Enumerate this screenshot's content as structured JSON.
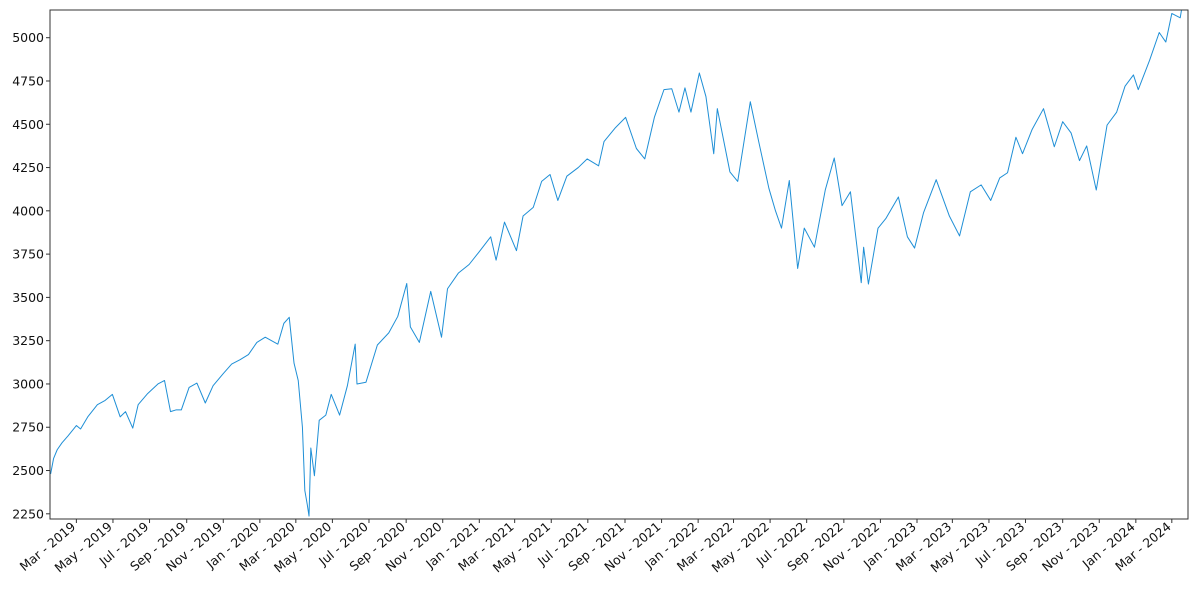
{
  "chart_data": {
    "type": "line",
    "title": "",
    "xlabel": "",
    "ylabel": "",
    "grid": false,
    "legend": "none",
    "ylim": [
      2220,
      5160
    ],
    "xlim": [
      "2019-01-16",
      "2024-03-28"
    ],
    "y_ticks": [
      2250,
      2500,
      2750,
      3000,
      3250,
      3500,
      3750,
      4000,
      4250,
      4500,
      4750,
      5000
    ],
    "x_ticks": [
      {
        "date": "2019-03-01",
        "label": "Mar - 2019"
      },
      {
        "date": "2019-05-01",
        "label": "May - 2019"
      },
      {
        "date": "2019-07-01",
        "label": "Jul - 2019"
      },
      {
        "date": "2019-09-01",
        "label": "Sep - 2019"
      },
      {
        "date": "2019-11-01",
        "label": "Nov - 2019"
      },
      {
        "date": "2020-01-01",
        "label": "Jan - 2020"
      },
      {
        "date": "2020-03-01",
        "label": "Mar - 2020"
      },
      {
        "date": "2020-05-01",
        "label": "May - 2020"
      },
      {
        "date": "2020-07-01",
        "label": "Jul - 2020"
      },
      {
        "date": "2020-09-01",
        "label": "Sep - 2020"
      },
      {
        "date": "2020-11-01",
        "label": "Nov - 2020"
      },
      {
        "date": "2021-01-01",
        "label": "Jan - 2021"
      },
      {
        "date": "2021-03-01",
        "label": "Mar - 2021"
      },
      {
        "date": "2021-05-01",
        "label": "May - 2021"
      },
      {
        "date": "2021-07-01",
        "label": "Jul - 2021"
      },
      {
        "date": "2021-09-01",
        "label": "Sep - 2021"
      },
      {
        "date": "2021-11-01",
        "label": "Nov - 2021"
      },
      {
        "date": "2022-01-01",
        "label": "Jan - 2022"
      },
      {
        "date": "2022-03-01",
        "label": "Mar - 2022"
      },
      {
        "date": "2022-05-01",
        "label": "May - 2022"
      },
      {
        "date": "2022-07-01",
        "label": "Jul - 2022"
      },
      {
        "date": "2022-09-01",
        "label": "Sep - 2022"
      },
      {
        "date": "2022-11-01",
        "label": "Nov - 2022"
      },
      {
        "date": "2023-01-01",
        "label": "Jan - 2023"
      },
      {
        "date": "2023-03-01",
        "label": "Mar - 2023"
      },
      {
        "date": "2023-05-01",
        "label": "May - 2023"
      },
      {
        "date": "2023-07-01",
        "label": "Jul - 2023"
      },
      {
        "date": "2023-09-01",
        "label": "Sep - 2023"
      },
      {
        "date": "2023-11-01",
        "label": "Nov - 2023"
      },
      {
        "date": "2024-01-01",
        "label": "Jan - 2024"
      },
      {
        "date": "2024-03-01",
        "label": "Mar - 2024"
      }
    ],
    "colors": {
      "line": "#1f8fd6",
      "axis": "#333333",
      "background": "#ffffff"
    },
    "series": [
      {
        "points": [
          [
            "2019-01-17",
            2480
          ],
          [
            "2019-01-22",
            2570
          ],
          [
            "2019-01-28",
            2620
          ],
          [
            "2019-02-05",
            2660
          ],
          [
            "2019-02-15",
            2700
          ],
          [
            "2019-03-01",
            2760
          ],
          [
            "2019-03-08",
            2740
          ],
          [
            "2019-03-20",
            2810
          ],
          [
            "2019-04-05",
            2880
          ],
          [
            "2019-04-18",
            2905
          ],
          [
            "2019-04-30",
            2940
          ],
          [
            "2019-05-13",
            2810
          ],
          [
            "2019-05-22",
            2840
          ],
          [
            "2019-06-03",
            2745
          ],
          [
            "2019-06-12",
            2880
          ],
          [
            "2019-06-28",
            2945
          ],
          [
            "2019-07-15",
            3000
          ],
          [
            "2019-07-26",
            3020
          ],
          [
            "2019-08-05",
            2840
          ],
          [
            "2019-08-14",
            2850
          ],
          [
            "2019-08-23",
            2850
          ],
          [
            "2019-09-05",
            2980
          ],
          [
            "2019-09-18",
            3005
          ],
          [
            "2019-10-02",
            2890
          ],
          [
            "2019-10-15",
            2990
          ],
          [
            "2019-11-01",
            3060
          ],
          [
            "2019-11-15",
            3115
          ],
          [
            "2019-11-29",
            3140
          ],
          [
            "2019-12-13",
            3170
          ],
          [
            "2019-12-27",
            3240
          ],
          [
            "2020-01-10",
            3270
          ],
          [
            "2020-01-31",
            3230
          ],
          [
            "2020-02-10",
            3350
          ],
          [
            "2020-02-19",
            3385
          ],
          [
            "2020-02-27",
            3120
          ],
          [
            "2020-03-05",
            3020
          ],
          [
            "2020-03-12",
            2750
          ],
          [
            "2020-03-16",
            2385
          ],
          [
            "2020-03-20",
            2305
          ],
          [
            "2020-03-23",
            2237
          ],
          [
            "2020-03-26",
            2630
          ],
          [
            "2020-04-01",
            2470
          ],
          [
            "2020-04-09",
            2790
          ],
          [
            "2020-04-20",
            2820
          ],
          [
            "2020-04-29",
            2940
          ],
          [
            "2020-05-13",
            2820
          ],
          [
            "2020-05-26",
            2990
          ],
          [
            "2020-06-08",
            3230
          ],
          [
            "2020-06-11",
            3000
          ],
          [
            "2020-06-26",
            3010
          ],
          [
            "2020-07-15",
            3225
          ],
          [
            "2020-08-03",
            3295
          ],
          [
            "2020-08-18",
            3390
          ],
          [
            "2020-09-02",
            3580
          ],
          [
            "2020-09-08",
            3330
          ],
          [
            "2020-09-23",
            3240
          ],
          [
            "2020-10-12",
            3535
          ],
          [
            "2020-10-30",
            3270
          ],
          [
            "2020-11-09",
            3550
          ],
          [
            "2020-11-27",
            3640
          ],
          [
            "2020-12-15",
            3690
          ],
          [
            "2020-12-31",
            3760
          ],
          [
            "2021-01-20",
            3850
          ],
          [
            "2021-01-29",
            3715
          ],
          [
            "2021-02-12",
            3935
          ],
          [
            "2021-03-04",
            3770
          ],
          [
            "2021-03-15",
            3970
          ],
          [
            "2021-04-01",
            4020
          ],
          [
            "2021-04-15",
            4170
          ],
          [
            "2021-04-29",
            4210
          ],
          [
            "2021-05-12",
            4060
          ],
          [
            "2021-05-27",
            4200
          ],
          [
            "2021-06-15",
            4250
          ],
          [
            "2021-06-30",
            4300
          ],
          [
            "2021-07-19",
            4260
          ],
          [
            "2021-07-28",
            4400
          ],
          [
            "2021-08-16",
            4480
          ],
          [
            "2021-09-02",
            4540
          ],
          [
            "2021-09-20",
            4360
          ],
          [
            "2021-10-04",
            4300
          ],
          [
            "2021-10-20",
            4540
          ],
          [
            "2021-11-05",
            4700
          ],
          [
            "2021-11-18",
            4705
          ],
          [
            "2021-11-30",
            4570
          ],
          [
            "2021-12-10",
            4710
          ],
          [
            "2021-12-20",
            4570
          ],
          [
            "2022-01-03",
            4796
          ],
          [
            "2022-01-14",
            4660
          ],
          [
            "2022-01-27",
            4330
          ],
          [
            "2022-02-02",
            4590
          ],
          [
            "2022-02-23",
            4225
          ],
          [
            "2022-03-08",
            4170
          ],
          [
            "2022-03-29",
            4630
          ],
          [
            "2022-04-12",
            4400
          ],
          [
            "2022-04-29",
            4130
          ],
          [
            "2022-05-10",
            4000
          ],
          [
            "2022-05-20",
            3900
          ],
          [
            "2022-06-02",
            4175
          ],
          [
            "2022-06-16",
            3667
          ],
          [
            "2022-06-27",
            3900
          ],
          [
            "2022-07-14",
            3790
          ],
          [
            "2022-08-01",
            4120
          ],
          [
            "2022-08-16",
            4305
          ],
          [
            "2022-08-29",
            4030
          ],
          [
            "2022-09-12",
            4110
          ],
          [
            "2022-09-30",
            3585
          ],
          [
            "2022-10-04",
            3790
          ],
          [
            "2022-10-12",
            3577
          ],
          [
            "2022-10-28",
            3900
          ],
          [
            "2022-11-10",
            3955
          ],
          [
            "2022-12-01",
            4080
          ],
          [
            "2022-12-16",
            3850
          ],
          [
            "2022-12-28",
            3785
          ],
          [
            "2023-01-12",
            3990
          ],
          [
            "2023-02-02",
            4180
          ],
          [
            "2023-02-24",
            3970
          ],
          [
            "2023-03-13",
            3855
          ],
          [
            "2023-03-31",
            4110
          ],
          [
            "2023-04-18",
            4150
          ],
          [
            "2023-05-04",
            4060
          ],
          [
            "2023-05-19",
            4190
          ],
          [
            "2023-06-01",
            4220
          ],
          [
            "2023-06-15",
            4425
          ],
          [
            "2023-06-26",
            4330
          ],
          [
            "2023-07-12",
            4470
          ],
          [
            "2023-07-31",
            4590
          ],
          [
            "2023-08-18",
            4370
          ],
          [
            "2023-09-01",
            4515
          ],
          [
            "2023-09-15",
            4450
          ],
          [
            "2023-09-29",
            4290
          ],
          [
            "2023-10-11",
            4375
          ],
          [
            "2023-10-27",
            4120
          ],
          [
            "2023-11-14",
            4495
          ],
          [
            "2023-11-30",
            4570
          ],
          [
            "2023-12-14",
            4720
          ],
          [
            "2023-12-28",
            4785
          ],
          [
            "2024-01-05",
            4700
          ],
          [
            "2024-01-24",
            4870
          ],
          [
            "2024-02-09",
            5030
          ],
          [
            "2024-02-20",
            4975
          ],
          [
            "2024-03-01",
            5140
          ],
          [
            "2024-03-15",
            5115
          ],
          [
            "2024-03-21",
            5240
          ],
          [
            "2024-03-27",
            5160
          ]
        ]
      }
    ]
  }
}
